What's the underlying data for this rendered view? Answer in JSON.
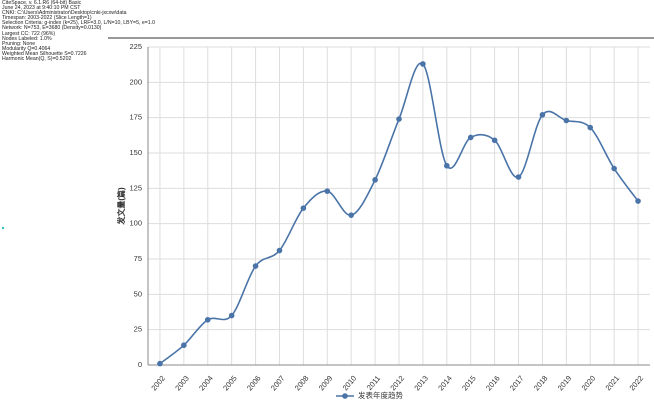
{
  "header": {
    "lines": [
      "CiteSpace, v. 6.1.R6 (64-bit) Basic",
      "June 24, 2023 at 9:40:10 PM CST",
      "CNKI: C:\\Users\\Administrator\\Desktop\\cnki-jxcxw\\data",
      "Timespan: 2003-2022 (Slice Length=1)",
      "Selection Criteria: g-index (k=25), LRF=3.0, L/N=10, LBY=5, e=1.0",
      "Network: N=753, E=3680 (Density=0.0130)",
      "Largest CC: 722 (96%)",
      "Nodes Labeled: 1.0%",
      "Pruning: None",
      "Modularity Q=0.4064",
      "Weighted Mean Silhouette S=0.7226",
      "Harmonic Mean(Q, S)=0.5202"
    ]
  },
  "chart_data": {
    "type": "line",
    "y_label": "发文量(篇)",
    "categories": [
      "2002",
      "2003",
      "2004",
      "2005",
      "2006",
      "2007",
      "2008",
      "2009",
      "2010",
      "2011",
      "2012",
      "2013",
      "2014",
      "2015",
      "2016",
      "2017",
      "2018",
      "2019",
      "2020",
      "2021",
      "2022"
    ],
    "series": [
      {
        "name": "发表年度趋势",
        "color": "#4a74a8",
        "values": [
          1,
          14,
          32,
          35,
          70,
          81,
          111,
          123,
          106,
          131,
          174,
          213,
          141,
          161,
          159,
          133,
          177,
          173,
          168,
          139,
          116
        ]
      }
    ],
    "ylim": [
      0,
      225
    ],
    "yticks": [
      0,
      25,
      50,
      75,
      100,
      125,
      150,
      175,
      200,
      225
    ],
    "grid": true
  }
}
